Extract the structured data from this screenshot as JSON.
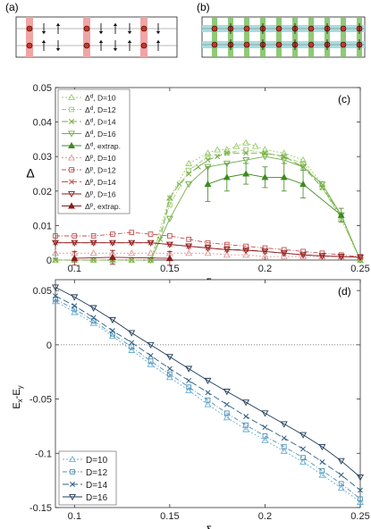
{
  "panels": {
    "a": {
      "label": "(a)"
    },
    "b": {
      "label": "(b)"
    }
  },
  "colors": {
    "d_light": "#9ccc6e",
    "d_mid": "#74ad48",
    "d_dark": "#3e8a20",
    "p_light": "#e09a9a",
    "p_mid": "#c0504d",
    "p_dark": "#8b1a1a",
    "stripe_red": "#f0a5a5",
    "stripe_green": "#7dc060",
    "stripe_cyan": "#a8dde0",
    "d_curve_blue": "#1f3b57"
  },
  "chart_data": [
    {
      "id": "c",
      "panel_label": "(c)",
      "type": "line",
      "ylabel": "Δ",
      "xlabel": "δ",
      "xlim": [
        0.09,
        0.25
      ],
      "ylim": [
        0,
        0.05
      ],
      "xticks": [
        "0.1",
        "0.15",
        "0.2",
        "0.25"
      ],
      "yticks": [
        "0",
        "0.01",
        "0.02",
        "0.03",
        "0.04",
        "0.05"
      ],
      "legend_position": "top-left",
      "series": [
        {
          "name": "Δᵈ, D=10",
          "label_main": "Δ",
          "sup": "d",
          "label_tail": ", D=10",
          "color": "#9ccc6e",
          "marker": "triangle-up",
          "dash": "2,2",
          "x": [
            0.09,
            0.1,
            0.11,
            0.12,
            0.13,
            0.14,
            0.15,
            0.16,
            0.17,
            0.175,
            0.18,
            0.185,
            0.19,
            0.195,
            0.2,
            0.21,
            0.22,
            0.23,
            0.24,
            0.25
          ],
          "y": [
            0,
            0,
            0,
            0,
            0,
            0,
            0.018,
            0.028,
            0.031,
            0.032,
            0.032,
            0.033,
            0.034,
            0.033,
            0.032,
            0.031,
            0.029,
            0.022,
            0.012,
            0
          ]
        },
        {
          "name": "Δᵈ, D=12",
          "label_main": "Δ",
          "sup": "d",
          "label_tail": ", D=12",
          "color": "#9ccc6e",
          "marker": "square",
          "dash": "5,2,1,2",
          "x": [
            0.09,
            0.1,
            0.11,
            0.12,
            0.13,
            0.14,
            0.15,
            0.16,
            0.17,
            0.18,
            0.19,
            0.2,
            0.21,
            0.22,
            0.23,
            0.24,
            0.25
          ],
          "y": [
            0,
            0,
            0,
            0,
            0,
            0,
            0.016,
            0.026,
            0.03,
            0.031,
            0.032,
            0.031,
            0.03,
            0.028,
            0.021,
            0.012,
            0
          ]
        },
        {
          "name": "Δᵈ, D=14",
          "label_main": "Δ",
          "sup": "d",
          "label_tail": ", D=14",
          "color": "#74ad48",
          "marker": "x",
          "dash": "7,3",
          "x": [
            0.09,
            0.1,
            0.11,
            0.12,
            0.13,
            0.14,
            0.145,
            0.15,
            0.155,
            0.16,
            0.165,
            0.17,
            0.175,
            0.18,
            0.19,
            0.2,
            0.21,
            0.22,
            0.23,
            0.24,
            0.25
          ],
          "y": [
            0,
            0,
            0,
            0,
            0,
            0,
            0.006,
            0.018,
            0.022,
            0.025,
            0.027,
            0.029,
            0.03,
            0.031,
            0.031,
            0.031,
            0.03,
            0.027,
            0.021,
            0.013,
            0
          ]
        },
        {
          "name": "Δᵈ, D=16",
          "label_main": "Δ",
          "sup": "d",
          "label_tail": ", D=16",
          "color": "#74ad48",
          "marker": "triangle-down",
          "dash": "",
          "x": [
            0.14,
            0.15,
            0.16,
            0.17,
            0.18,
            0.19,
            0.2,
            0.21,
            0.22,
            0.23,
            0.24,
            0.25
          ],
          "y": [
            0,
            0.012,
            0.022,
            0.027,
            0.028,
            0.029,
            0.03,
            0.029,
            0.027,
            0.022,
            0.013,
            0
          ]
        },
        {
          "name": "Δᵈ, extrap.",
          "label_main": "Δ",
          "sup": "d",
          "label_tail": ", extrap.",
          "color": "#3e8a20",
          "marker": "triangle-up-filled",
          "dash": "",
          "x": [
            0.17,
            0.18,
            0.19,
            0.2,
            0.21,
            0.22,
            0.24
          ],
          "y": [
            0.022,
            0.024,
            0.025,
            0.024,
            0.024,
            0.022,
            0.013
          ],
          "err": [
            0.005,
            0.004,
            0.003,
            0.003,
            0.004,
            0.004,
            0.002
          ]
        },
        {
          "name": "Δᵖ, D=10",
          "label_main": "Δ",
          "sup": "p",
          "label_tail": ", D=10",
          "color": "#e09a9a",
          "marker": "triangle-up",
          "dash": "2,2",
          "x": [
            0.09,
            0.1,
            0.11,
            0.12,
            0.13,
            0.14,
            0.15,
            0.16,
            0.17,
            0.18,
            0.19,
            0.2,
            0.21,
            0.22,
            0.23,
            0.24,
            0.25
          ],
          "y": [
            0.002,
            0.002,
            0.002,
            0.002,
            0.002,
            0.002,
            0.002,
            0.002,
            0.002,
            0.0015,
            0.0015,
            0.001,
            0.001,
            0.001,
            0.001,
            0.001,
            0.0008
          ]
        },
        {
          "name": "Δᵖ, D=12",
          "label_main": "Δ",
          "sup": "p",
          "label_tail": ", D=12",
          "color": "#c0504d",
          "marker": "square",
          "dash": "5,2,1,2",
          "x": [
            0.09,
            0.1,
            0.11,
            0.12,
            0.13,
            0.14,
            0.15,
            0.16,
            0.17,
            0.18,
            0.19,
            0.2,
            0.21,
            0.22,
            0.23,
            0.24,
            0.25
          ],
          "y": [
            0.007,
            0.007,
            0.007,
            0.0075,
            0.008,
            0.0075,
            0.007,
            0.006,
            0.005,
            0.0045,
            0.004,
            0.0035,
            0.003,
            0.0025,
            0.002,
            0.0015,
            0.001
          ]
        },
        {
          "name": "Δᵖ, D=14",
          "label_main": "Δ",
          "sup": "p",
          "label_tail": ", D=14",
          "color": "#c0504d",
          "marker": "x",
          "dash": "7,3",
          "x": [
            0.09,
            0.1,
            0.11,
            0.12,
            0.13,
            0.14,
            0.15,
            0.16,
            0.17,
            0.18,
            0.19,
            0.2,
            0.21,
            0.22,
            0.23,
            0.24,
            0.25
          ],
          "y": [
            0.005,
            0.005,
            0.005,
            0.005,
            0.005,
            0.005,
            0.0045,
            0.004,
            0.0035,
            0.003,
            0.003,
            0.0025,
            0.002,
            0.0015,
            0.0012,
            0.001,
            0.0008
          ]
        },
        {
          "name": "Δᵖ, D=16",
          "label_main": "Δ",
          "sup": "p",
          "label_tail": ", D=16",
          "color": "#8b1a1a",
          "marker": "triangle-down",
          "dash": "",
          "x": [
            0.09,
            0.1,
            0.11,
            0.12,
            0.13,
            0.14,
            0.15,
            0.16,
            0.17,
            0.18,
            0.19,
            0.2,
            0.21,
            0.22,
            0.23,
            0.24,
            0.25
          ],
          "y": [
            0.005,
            0.005,
            0.005,
            0.005,
            0.005,
            0.005,
            0.0045,
            0.004,
            0.0035,
            0.003,
            0.0028,
            0.0025,
            0.002,
            0.0015,
            0.0012,
            0.001,
            0.0008
          ]
        },
        {
          "name": "Δᵖ, extrap.",
          "label_main": "Δ",
          "sup": "p",
          "label_tail": ", extrap.",
          "color": "#8b1a1a",
          "marker": "triangle-up-filled",
          "dash": "",
          "x": [
            0.1,
            0.12,
            0.15
          ],
          "y": [
            0.0005,
            0.0008,
            0.0005
          ],
          "err": [
            0.002,
            0.002,
            0.002
          ]
        }
      ]
    },
    {
      "id": "d",
      "panel_label": "(d)",
      "type": "line",
      "ylabel_main": "E",
      "ylabel_sub1": "x",
      "ylabel_mid": "-E",
      "ylabel_sub2": "y",
      "xlabel": "δ",
      "xlim": [
        0.09,
        0.25
      ],
      "ylim": [
        -0.15,
        0.06
      ],
      "xticks": [
        "0.1",
        "0.15",
        "0.2",
        "0.25"
      ],
      "yticks": [
        "-0.15",
        "-0.1",
        "-0.05",
        "0",
        "0.05"
      ],
      "reference_line_y": 0,
      "legend_position": "bottom-left",
      "series": [
        {
          "name": "D=10",
          "color": "#6aaed6",
          "marker": "triangle-up",
          "dash": "2,2",
          "x": [
            0.09,
            0.1,
            0.11,
            0.12,
            0.13,
            0.14,
            0.15,
            0.16,
            0.17,
            0.18,
            0.19,
            0.2,
            0.21,
            0.22,
            0.23,
            0.24,
            0.25
          ],
          "y": [
            0.04,
            0.03,
            0.02,
            0.008,
            -0.005,
            -0.018,
            -0.03,
            -0.042,
            -0.055,
            -0.067,
            -0.078,
            -0.088,
            -0.098,
            -0.108,
            -0.12,
            -0.132,
            -0.145
          ]
        },
        {
          "name": "D=12",
          "color": "#4e8fb5",
          "marker": "square",
          "dash": "5,2,1,2",
          "x": [
            0.09,
            0.1,
            0.11,
            0.12,
            0.13,
            0.14,
            0.15,
            0.16,
            0.17,
            0.18,
            0.19,
            0.2,
            0.21,
            0.22,
            0.23,
            0.24,
            0.25
          ],
          "y": [
            0.042,
            0.033,
            0.022,
            0.01,
            -0.002,
            -0.015,
            -0.027,
            -0.039,
            -0.051,
            -0.063,
            -0.074,
            -0.084,
            -0.094,
            -0.104,
            -0.116,
            -0.128,
            -0.142
          ]
        },
        {
          "name": "D=14",
          "color": "#2f5f85",
          "marker": "x",
          "dash": "7,3",
          "x": [
            0.09,
            0.1,
            0.11,
            0.12,
            0.13,
            0.14,
            0.15,
            0.16,
            0.17,
            0.18,
            0.19,
            0.2,
            0.21,
            0.22,
            0.23,
            0.24,
            0.25
          ],
          "y": [
            0.045,
            0.036,
            0.025,
            0.013,
            0.002,
            -0.01,
            -0.022,
            -0.033,
            -0.044,
            -0.055,
            -0.066,
            -0.076,
            -0.086,
            -0.096,
            -0.108,
            -0.12,
            -0.134
          ]
        },
        {
          "name": "D=16",
          "color": "#1f3b57",
          "marker": "triangle-down",
          "dash": "",
          "x": [
            0.09,
            0.1,
            0.11,
            0.12,
            0.13,
            0.14,
            0.15,
            0.16,
            0.17,
            0.18,
            0.19,
            0.2,
            0.21,
            0.22,
            0.23,
            0.24,
            0.25
          ],
          "y": [
            0.053,
            0.044,
            0.034,
            0.023,
            0.011,
            0,
            -0.011,
            -0.022,
            -0.033,
            -0.043,
            -0.053,
            -0.063,
            -0.073,
            -0.083,
            -0.094,
            -0.107,
            -0.122
          ]
        }
      ]
    }
  ]
}
